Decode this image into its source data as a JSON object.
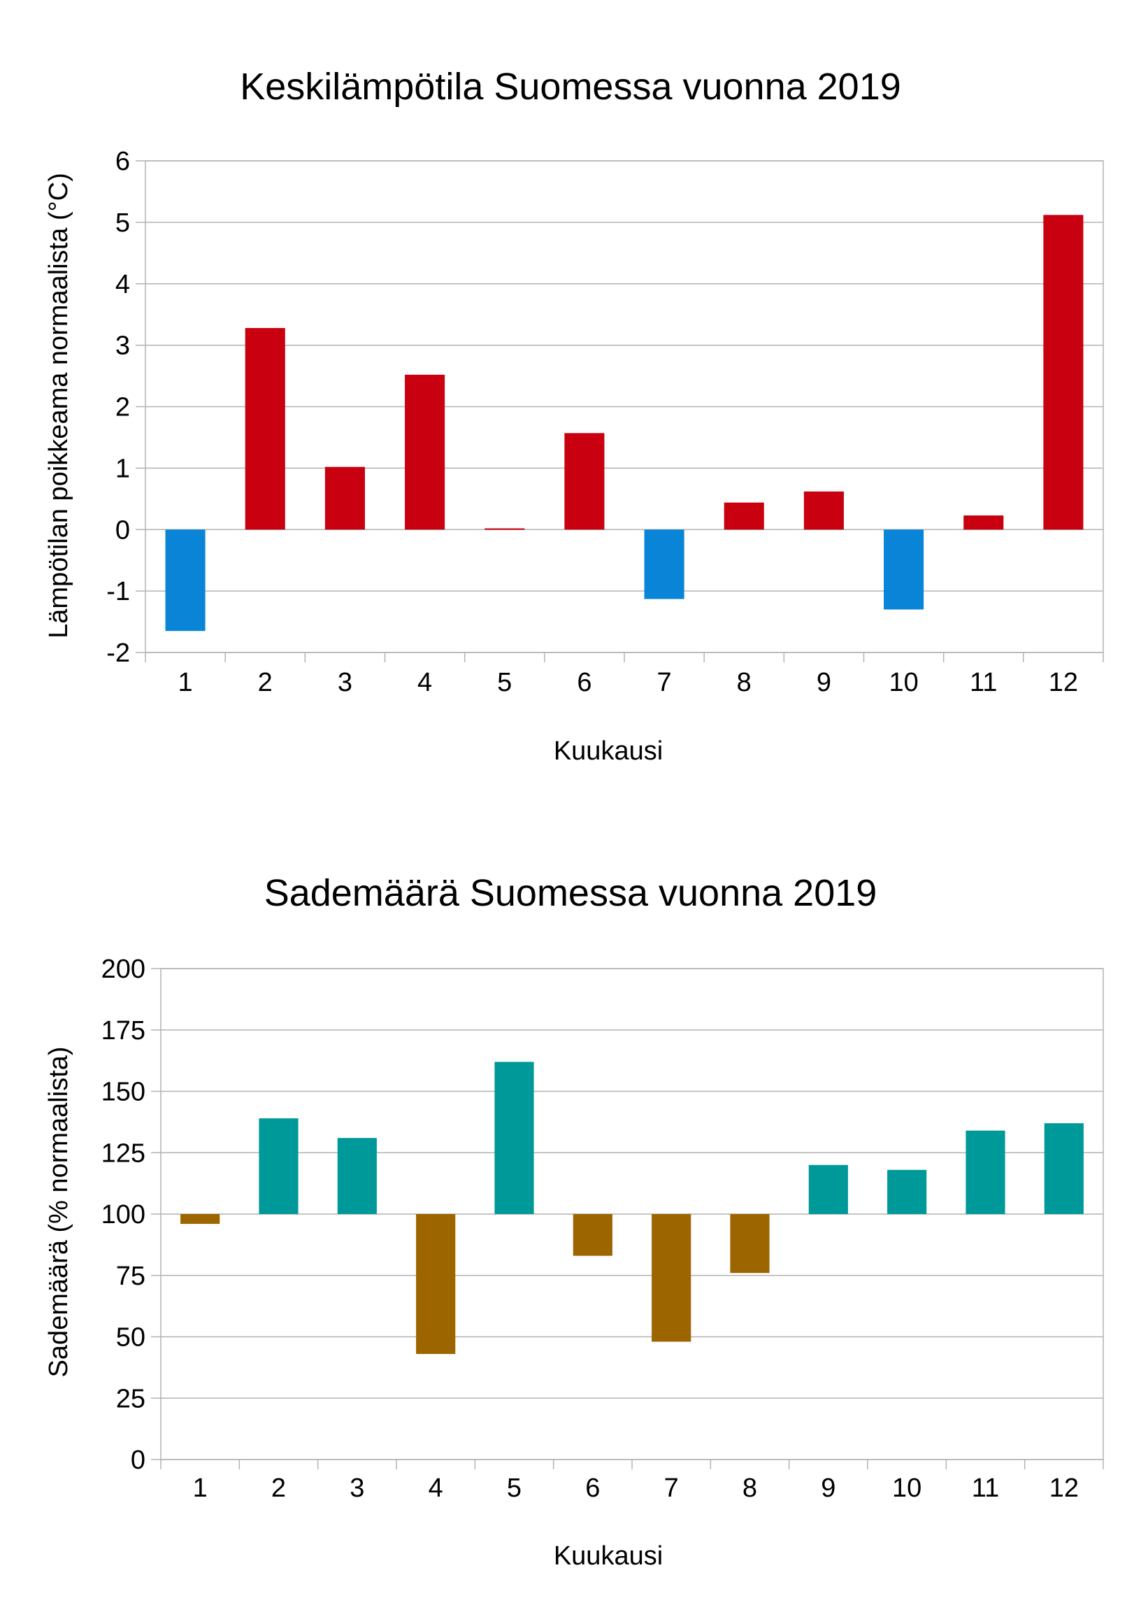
{
  "chart_data": [
    {
      "type": "bar",
      "title": "Keskilämpötila Suomessa vuonna 2019",
      "xlabel": "Kuukausi",
      "ylabel": "Lämpötilan poikkeama normaalista (°C)",
      "categories": [
        "1",
        "2",
        "3",
        "4",
        "5",
        "6",
        "7",
        "8",
        "9",
        "10",
        "11",
        "12"
      ],
      "values": [
        -1.65,
        3.28,
        1.02,
        2.52,
        0.02,
        1.57,
        -1.13,
        0.44,
        0.62,
        -1.3,
        0.23,
        5.12
      ],
      "baseline": 0,
      "ylim": [
        -2,
        6
      ],
      "yticks": [
        "-2",
        "-1",
        "0",
        "1",
        "2",
        "3",
        "4",
        "5",
        "6"
      ],
      "grid": true,
      "colors": {
        "above": "#c9000f",
        "below": "#0a84d6"
      }
    },
    {
      "type": "bar",
      "title": "Sademäärä Suomessa vuonna 2019",
      "xlabel": "Kuukausi",
      "ylabel": "Sademäärä (% normaalista)",
      "categories": [
        "1",
        "2",
        "3",
        "4",
        "5",
        "6",
        "7",
        "8",
        "9",
        "10",
        "11",
        "12"
      ],
      "values": [
        96,
        139,
        131,
        43,
        162,
        83,
        48,
        76,
        120,
        118,
        134,
        137
      ],
      "baseline": 100,
      "ylim": [
        0,
        200
      ],
      "yticks": [
        "0",
        "25",
        "50",
        "75",
        "100",
        "125",
        "150",
        "175",
        "200"
      ],
      "grid": true,
      "colors": {
        "above": "#00999a",
        "below": "#9c6500"
      }
    }
  ]
}
